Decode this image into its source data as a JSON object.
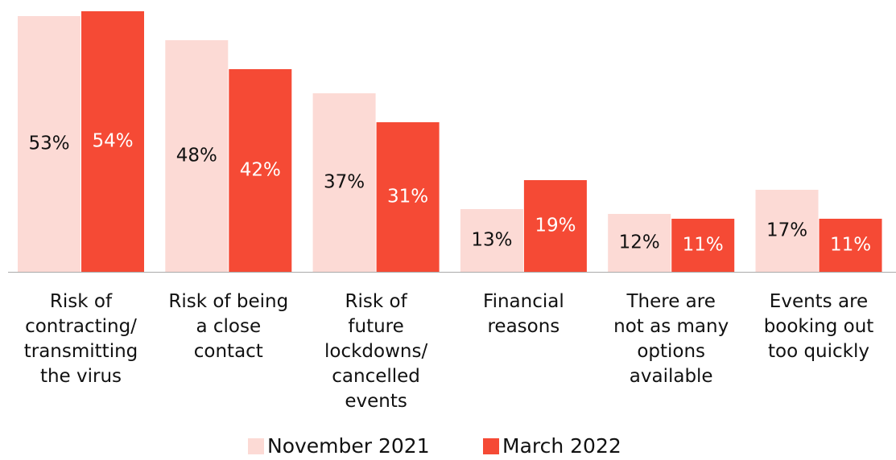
{
  "chart_data": {
    "type": "bar",
    "categories": [
      "Risk of\ncontracting/\ntransmitting\nthe virus",
      "Risk of being\na close\ncontact",
      "Risk of\nfuture\nlockdowns/\ncancelled\nevents",
      "Financial\nreasons",
      "There are\nnot as many\noptions\navailable",
      "Events are\nbooking out\ntoo quickly"
    ],
    "series": [
      {
        "name": "November 2021",
        "color": "#fcdad5",
        "values": [
          53,
          48,
          37,
          13,
          12,
          17
        ],
        "value_labels": [
          "53%",
          "48%",
          "37%",
          "13%",
          "12%",
          "17%"
        ]
      },
      {
        "name": "March 2022",
        "color": "#f54a35",
        "values": [
          54,
          42,
          31,
          19,
          11,
          11
        ],
        "value_labels": [
          "54%",
          "42%",
          "31%",
          "19%",
          "11%",
          "11%"
        ]
      }
    ],
    "legend": "bottom"
  }
}
